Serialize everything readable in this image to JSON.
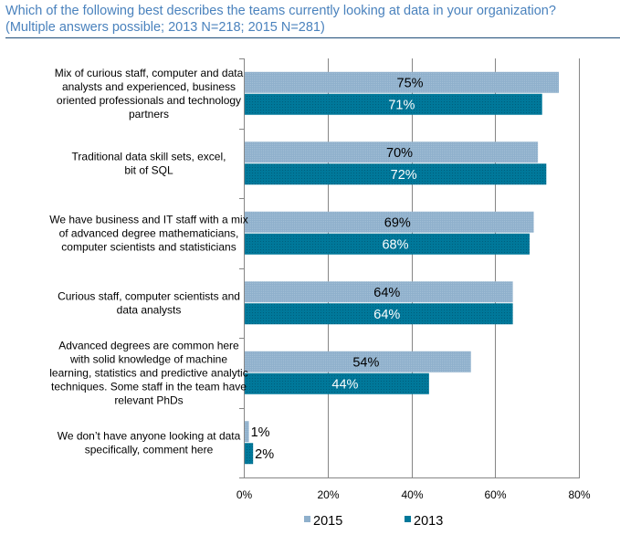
{
  "header": {
    "title_line1": "Which of the following best describes the teams currently looking at data in your organization?",
    "title_line2": "(Multiple answers possible;  2013 N=218; 2015 N=281)"
  },
  "chart_data": {
    "type": "bar",
    "orientation": "horizontal",
    "title": "Which of the following best describes the teams currently looking at data in your organization? (Multiple answers possible;  2013 N=218; 2015 N=281)",
    "xlabel": "",
    "ylabel": "",
    "xlim": [
      0,
      80
    ],
    "x_ticks": [
      0,
      20,
      40,
      60,
      80
    ],
    "x_tick_labels": [
      "0%",
      "20%",
      "40%",
      "60%",
      "80%"
    ],
    "grid": "vertical",
    "legend_position": "bottom",
    "categories": [
      [
        "Mix of curious staff, computer and data",
        "analysts and experienced, business",
        "oriented professionals and technology",
        "partners"
      ],
      [
        "Traditional data skill sets, excel,",
        "bit of SQL"
      ],
      [
        "We have business and IT staff with a mix",
        "of advanced degree mathematicians,",
        "computer scientists and statisticians"
      ],
      [
        "Curious staff, computer scientists and",
        "data analysts"
      ],
      [
        "Advanced degrees are common here",
        "with solid knowledge of machine",
        "learning, statistics and predictive analytic",
        "techniques. Some staff in the team have",
        "relevant PhDs"
      ],
      [
        "We don’t have  anyone looking at data",
        "specifically, comment here"
      ]
    ],
    "series": [
      {
        "name": "2015",
        "color": "#8fb0cc",
        "label_color": "#000000",
        "values": [
          75,
          70,
          69,
          64,
          54,
          1
        ]
      },
      {
        "name": "2013",
        "color": "#00789a",
        "label_color": "#ffffff",
        "values": [
          71,
          72,
          68,
          64,
          44,
          2
        ]
      }
    ],
    "value_suffix": "%"
  }
}
